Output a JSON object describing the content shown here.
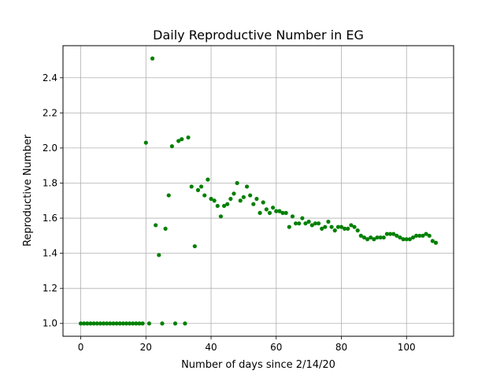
{
  "chart_data": {
    "type": "scatter",
    "title": "Daily Reproductive Number in EG",
    "xlabel": "Number of days since 2/14/20",
    "ylabel": "Reproductive Number",
    "xlim": [
      -5.45,
      114.45
    ],
    "ylim": [
      0.927,
      2.583
    ],
    "x_ticks": [
      0,
      20,
      40,
      60,
      80,
      100
    ],
    "y_ticks": [
      1.0,
      1.2,
      1.4,
      1.6,
      1.8,
      2.0,
      2.2,
      2.4
    ],
    "grid": true,
    "marker_color": "#008000",
    "points": [
      [
        0,
        1.0
      ],
      [
        1,
        1.0
      ],
      [
        2,
        1.0
      ],
      [
        3,
        1.0
      ],
      [
        4,
        1.0
      ],
      [
        5,
        1.0
      ],
      [
        6,
        1.0
      ],
      [
        7,
        1.0
      ],
      [
        8,
        1.0
      ],
      [
        9,
        1.0
      ],
      [
        10,
        1.0
      ],
      [
        11,
        1.0
      ],
      [
        12,
        1.0
      ],
      [
        13,
        1.0
      ],
      [
        14,
        1.0
      ],
      [
        15,
        1.0
      ],
      [
        16,
        1.0
      ],
      [
        17,
        1.0
      ],
      [
        18,
        1.0
      ],
      [
        19,
        1.0
      ],
      [
        20,
        2.03
      ],
      [
        21,
        1.0
      ],
      [
        22,
        2.51
      ],
      [
        23,
        1.56
      ],
      [
        24,
        1.39
      ],
      [
        25,
        1.0
      ],
      [
        26,
        1.54
      ],
      [
        27,
        1.73
      ],
      [
        28,
        2.01
      ],
      [
        29,
        1.0
      ],
      [
        30,
        2.04
      ],
      [
        31,
        2.05
      ],
      [
        32,
        1.0
      ],
      [
        33,
        2.06
      ],
      [
        34,
        1.78
      ],
      [
        35,
        1.44
      ],
      [
        36,
        1.76
      ],
      [
        37,
        1.78
      ],
      [
        38,
        1.73
      ],
      [
        39,
        1.82
      ],
      [
        40,
        1.71
      ],
      [
        41,
        1.7
      ],
      [
        42,
        1.67
      ],
      [
        43,
        1.61
      ],
      [
        44,
        1.67
      ],
      [
        45,
        1.68
      ],
      [
        46,
        1.71
      ],
      [
        47,
        1.74
      ],
      [
        48,
        1.8
      ],
      [
        49,
        1.7
      ],
      [
        50,
        1.72
      ],
      [
        51,
        1.78
      ],
      [
        52,
        1.73
      ],
      [
        53,
        1.68
      ],
      [
        54,
        1.71
      ],
      [
        55,
        1.63
      ],
      [
        56,
        1.69
      ],
      [
        57,
        1.65
      ],
      [
        58,
        1.63
      ],
      [
        59,
        1.66
      ],
      [
        60,
        1.64
      ],
      [
        61,
        1.64
      ],
      [
        62,
        1.63
      ],
      [
        63,
        1.63
      ],
      [
        64,
        1.55
      ],
      [
        65,
        1.61
      ],
      [
        66,
        1.57
      ],
      [
        67,
        1.57
      ],
      [
        68,
        1.6
      ],
      [
        69,
        1.57
      ],
      [
        70,
        1.58
      ],
      [
        71,
        1.56
      ],
      [
        72,
        1.57
      ],
      [
        73,
        1.57
      ],
      [
        74,
        1.54
      ],
      [
        75,
        1.55
      ],
      [
        76,
        1.58
      ],
      [
        77,
        1.55
      ],
      [
        78,
        1.53
      ],
      [
        79,
        1.55
      ],
      [
        80,
        1.55
      ],
      [
        81,
        1.54
      ],
      [
        82,
        1.54
      ],
      [
        83,
        1.56
      ],
      [
        84,
        1.55
      ],
      [
        85,
        1.53
      ],
      [
        86,
        1.5
      ],
      [
        87,
        1.49
      ],
      [
        88,
        1.48
      ],
      [
        89,
        1.49
      ],
      [
        90,
        1.48
      ],
      [
        91,
        1.49
      ],
      [
        92,
        1.49
      ],
      [
        93,
        1.49
      ],
      [
        94,
        1.51
      ],
      [
        95,
        1.51
      ],
      [
        96,
        1.51
      ],
      [
        97,
        1.5
      ],
      [
        98,
        1.49
      ],
      [
        99,
        1.48
      ],
      [
        100,
        1.48
      ],
      [
        101,
        1.48
      ],
      [
        102,
        1.49
      ],
      [
        103,
        1.5
      ],
      [
        104,
        1.5
      ],
      [
        105,
        1.5
      ],
      [
        106,
        1.51
      ],
      [
        107,
        1.5
      ],
      [
        108,
        1.47
      ],
      [
        109,
        1.46
      ]
    ]
  }
}
